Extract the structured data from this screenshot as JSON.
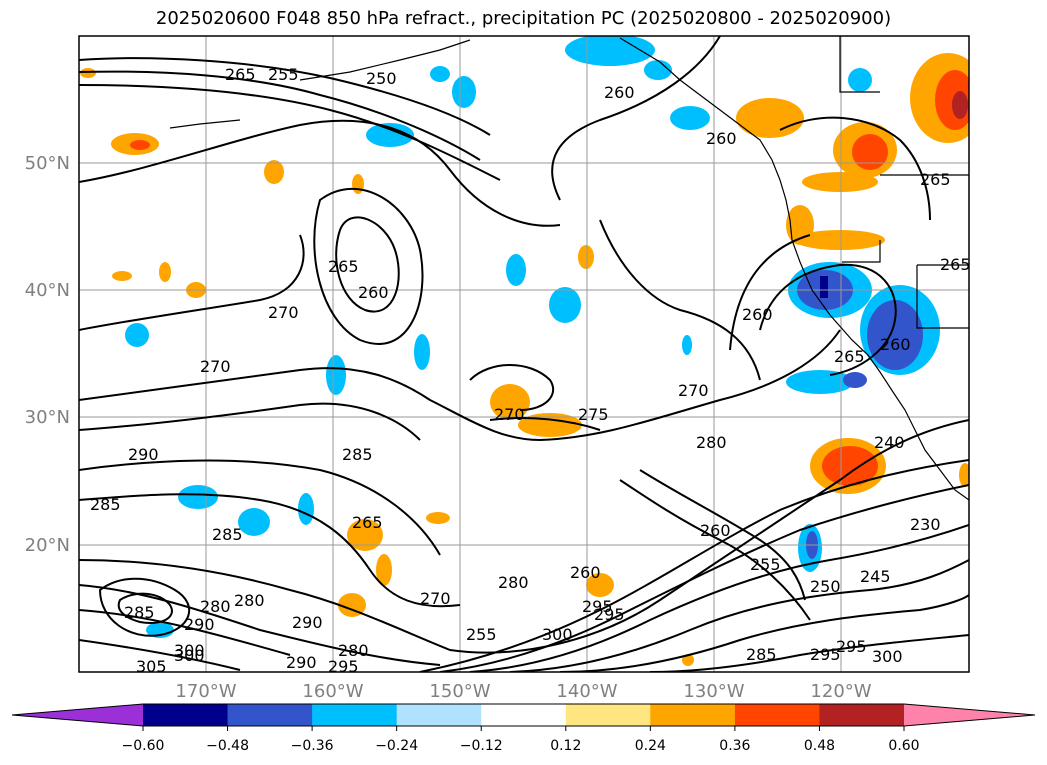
{
  "title": "2025020600 F048 850 hPa refract., precipitation PC (2025020800 - 2025020900)",
  "lat_labels": [
    "50°N",
    "40°N",
    "30°N",
    "20°N"
  ],
  "lon_labels": [
    "170°W",
    "160°W",
    "150°W",
    "140°W",
    "130°W",
    "120°W"
  ],
  "colorbar": {
    "colors": [
      "#9b30d9",
      "#00008b",
      "#3355cc",
      "#00bfff",
      "#b0e2ff",
      "#ffffff",
      "#ffe680",
      "#ffa500",
      "#ff4500",
      "#b22222",
      "#ff82ab"
    ],
    "tick_labels": [
      "−0.60",
      "−0.48",
      "−0.36",
      "−0.24",
      "−0.12",
      "0.12",
      "0.24",
      "0.36",
      "0.48",
      "0.60"
    ]
  },
  "contour_labels": [
    "265",
    "255",
    "250",
    "260",
    "260",
    "265",
    "265",
    "260",
    "265",
    "260",
    "260",
    "265",
    "270",
    "270",
    "275",
    "270",
    "270",
    "285",
    "290",
    "280",
    "280",
    "285",
    "265",
    "260",
    "255",
    "250",
    "245",
    "290",
    "230",
    "240",
    "270",
    "280",
    "260",
    "295",
    "300",
    "255",
    "285",
    "280",
    "295",
    "300",
    "285",
    "290",
    "295",
    "300",
    "280",
    "285",
    "290",
    "295",
    "295",
    "305",
    "300"
  ]
}
